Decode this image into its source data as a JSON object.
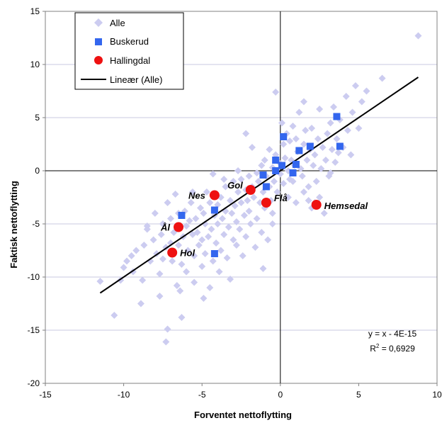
{
  "chart_data": {
    "type": "scatter",
    "title": "",
    "xlabel": "Forventet nettoflytting",
    "ylabel": "Faktisk nettoflytting",
    "xlim": [
      -15,
      10
    ],
    "ylim": [
      -20,
      15
    ],
    "xticks": [
      -15,
      -10,
      -5,
      0,
      5,
      10
    ],
    "yticks": [
      -20,
      -15,
      -10,
      -5,
      0,
      5,
      10,
      15
    ],
    "grid": "horizontal",
    "legend_position": "top-left",
    "colors": {
      "Alle": "#ccccf0",
      "Buskerud": "#3366ee",
      "Hallingdal": "#ee1111",
      "Lineær (Alle)": "#000000"
    },
    "series": [
      {
        "name": "Alle",
        "marker": "diamond",
        "points": [
          [
            -11.5,
            -10.4
          ],
          [
            -10.6,
            -13.6
          ],
          [
            -10,
            -9.1
          ],
          [
            -10.2,
            -10.3
          ],
          [
            -9.8,
            -8.5
          ],
          [
            -9.5,
            -8.0
          ],
          [
            -9.2,
            -7.5
          ],
          [
            -9.4,
            -9.5
          ],
          [
            -8.9,
            -12.5
          ],
          [
            -8.8,
            -10.3
          ],
          [
            -8.7,
            -7.0
          ],
          [
            -8.5,
            -5.5
          ],
          [
            -8.3,
            -8.5
          ],
          [
            -8.1,
            -6.5
          ],
          [
            -8.0,
            -4.0
          ],
          [
            -7.9,
            -7.8
          ],
          [
            -7.7,
            -9.7
          ],
          [
            -7.6,
            -6.0
          ],
          [
            -7.5,
            -5.0
          ],
          [
            -7.5,
            -8.3
          ],
          [
            -7.3,
            -16.1
          ],
          [
            -7.2,
            -14.9
          ],
          [
            -7.3,
            -7.2
          ],
          [
            -7.2,
            -3.0
          ],
          [
            -7.0,
            -4.5
          ],
          [
            -7.0,
            -6.8
          ],
          [
            -6.9,
            -8.5
          ],
          [
            -6.8,
            -5.8
          ],
          [
            -6.7,
            -2.2
          ],
          [
            -6.6,
            -10.8
          ],
          [
            -6.5,
            -4.0
          ],
          [
            -6.5,
            -7.0
          ],
          [
            -6.3,
            -13.8
          ],
          [
            -6.3,
            -8.8
          ],
          [
            -6.2,
            -6.2
          ],
          [
            -6.1,
            -3.8
          ],
          [
            -6.0,
            -5.2
          ],
          [
            -6.0,
            -9.5
          ],
          [
            -5.9,
            -7.5
          ],
          [
            -5.8,
            -4.7
          ],
          [
            -5.7,
            -3.0
          ],
          [
            -5.6,
            -6.0
          ],
          [
            -5.5,
            -8.0
          ],
          [
            -5.5,
            -10.5
          ],
          [
            -5.4,
            -4.5
          ],
          [
            -5.3,
            -5.8
          ],
          [
            -5.2,
            -7.0
          ],
          [
            -5.1,
            -3.5
          ],
          [
            -5.0,
            -6.5
          ],
          [
            -5.0,
            -9.0
          ],
          [
            -4.9,
            -4.0
          ],
          [
            -4.8,
            -5.0
          ],
          [
            -4.8,
            -7.8
          ],
          [
            -4.7,
            -2.0
          ],
          [
            -4.6,
            -6.2
          ],
          [
            -4.5,
            -3.0
          ],
          [
            -4.5,
            -11.0
          ],
          [
            -4.4,
            -5.5
          ],
          [
            -4.3,
            -0.3
          ],
          [
            -4.3,
            -8.5
          ],
          [
            -4.2,
            -4.2
          ],
          [
            -4.1,
            -6.8
          ],
          [
            -4.0,
            -3.2
          ],
          [
            -4.0,
            -5.0
          ],
          [
            -3.9,
            -9.5
          ],
          [
            -3.8,
            -2.5
          ],
          [
            -3.8,
            -7.5
          ],
          [
            -3.7,
            -4.5
          ],
          [
            -3.6,
            -6.0
          ],
          [
            -3.5,
            -1.5
          ],
          [
            -3.5,
            -3.8
          ],
          [
            -3.4,
            -8.2
          ],
          [
            -3.3,
            -5.3
          ],
          [
            -3.2,
            -2.8
          ],
          [
            -3.2,
            -10.2
          ],
          [
            -3.1,
            -4.0
          ],
          [
            -3.0,
            -6.5
          ],
          [
            -3.0,
            -1.0
          ],
          [
            -2.9,
            -3.3
          ],
          [
            -2.8,
            -7.0
          ],
          [
            -2.8,
            -4.8
          ],
          [
            -2.7,
            -2.0
          ],
          [
            -2.6,
            -5.5
          ],
          [
            -2.5,
            -0.8
          ],
          [
            -2.5,
            -3.0
          ],
          [
            -2.4,
            -8.0
          ],
          [
            -2.3,
            -4.2
          ],
          [
            -2.2,
            -1.8
          ],
          [
            -2.2,
            -6.2
          ],
          [
            -2.1,
            -2.8
          ],
          [
            -2.0,
            -0.5
          ],
          [
            -2.0,
            -3.8
          ],
          [
            -1.9,
            -5.0
          ],
          [
            -1.8,
            -1.5
          ],
          [
            -1.8,
            2.2
          ],
          [
            -1.7,
            -2.5
          ],
          [
            -1.6,
            -7.2
          ],
          [
            -1.5,
            -0.2
          ],
          [
            -1.5,
            -4.5
          ],
          [
            -1.4,
            -1.0
          ],
          [
            -1.3,
            -3.0
          ],
          [
            -1.2,
            0.5
          ],
          [
            -1.2,
            -5.8
          ],
          [
            -1.1,
            -2.0
          ],
          [
            -1.0,
            1.0
          ],
          [
            -1.0,
            -3.5
          ],
          [
            -0.9,
            -0.5
          ],
          [
            -0.8,
            -6.5
          ],
          [
            -0.7,
            -1.5
          ],
          [
            -0.7,
            2.0
          ],
          [
            -0.6,
            -2.8
          ],
          [
            -0.5,
            0.3
          ],
          [
            -0.5,
            -4.0
          ],
          [
            -0.4,
            -1.0
          ],
          [
            -0.3,
            1.5
          ],
          [
            -0.3,
            7.4
          ],
          [
            -0.2,
            -2.0
          ],
          [
            -0.1,
            0.8
          ],
          [
            0.0,
            -0.3
          ],
          [
            0.1,
            4.5
          ],
          [
            0.2,
            2.5
          ],
          [
            0.2,
            -1.2
          ],
          [
            0.3,
            1.2
          ],
          [
            0.4,
            3.5
          ],
          [
            0.5,
            0.0
          ],
          [
            0.5,
            -2.5
          ],
          [
            0.6,
            2.8
          ],
          [
            0.7,
            1.0
          ],
          [
            0.8,
            4.2
          ],
          [
            0.8,
            -1.0
          ],
          [
            0.9,
            0.5
          ],
          [
            1.0,
            3.0
          ],
          [
            1.0,
            -3.0
          ],
          [
            1.1,
            1.8
          ],
          [
            1.2,
            5.5
          ],
          [
            1.3,
            0.2
          ],
          [
            1.4,
            -0.5
          ],
          [
            1.5,
            2.5
          ],
          [
            1.5,
            -2.0
          ],
          [
            1.6,
            3.8
          ],
          [
            1.7,
            1.0
          ],
          [
            1.8,
            -1.5
          ],
          [
            1.9,
            2.0
          ],
          [
            2.0,
            4.0
          ],
          [
            2.0,
            -3.5
          ],
          [
            2.1,
            0.5
          ],
          [
            2.2,
            1.5
          ],
          [
            2.3,
            -1.0
          ],
          [
            2.4,
            3.0
          ],
          [
            2.5,
            5.8
          ],
          [
            2.5,
            -2.5
          ],
          [
            2.6,
            0.2
          ],
          [
            2.7,
            2.2
          ],
          [
            2.8,
            -4.0
          ],
          [
            2.9,
            1.0
          ],
          [
            3.0,
            3.5
          ],
          [
            3.1,
            -0.5
          ],
          [
            3.2,
            4.5
          ],
          [
            3.3,
            2.0
          ],
          [
            3.4,
            6.0
          ],
          [
            3.5,
            0.8
          ],
          [
            3.6,
            3.0
          ],
          [
            3.8,
            4.8
          ],
          [
            4.0,
            2.2
          ],
          [
            4.2,
            7.0
          ],
          [
            4.3,
            3.8
          ],
          [
            4.5,
            1.5
          ],
          [
            4.6,
            5.5
          ],
          [
            4.8,
            8.0
          ],
          [
            5.0,
            4.0
          ],
          [
            5.2,
            6.5
          ],
          [
            5.5,
            7.5
          ],
          [
            6.5,
            8.7
          ],
          [
            8.8,
            12.7
          ],
          [
            3.2,
            -0.2
          ],
          [
            2.2,
            -3.0
          ],
          [
            -0.5,
            -5.0
          ],
          [
            1.5,
            6.5
          ],
          [
            -2.2,
            3.5
          ],
          [
            0.6,
            -0.8
          ],
          [
            -6.4,
            -11.3
          ],
          [
            -7.7,
            -11.8
          ],
          [
            -3.6,
            -0.8
          ],
          [
            -2.7,
            0.0
          ],
          [
            -5.6,
            -2.0
          ],
          [
            -8.5,
            -5.2
          ],
          [
            -4.9,
            -12.0
          ],
          [
            -1.1,
            -9.2
          ],
          [
            1.8,
            -2.8
          ],
          [
            3.7,
            1.7
          ]
        ]
      },
      {
        "name": "Buskerud",
        "marker": "square",
        "points": [
          [
            -6.3,
            -4.2
          ],
          [
            -4.2,
            -3.7
          ],
          [
            -4.2,
            -7.8
          ],
          [
            -1.1,
            -0.4
          ],
          [
            -0.9,
            -1.5
          ],
          [
            -0.3,
            1.0
          ],
          [
            -0.3,
            0.0
          ],
          [
            0.1,
            0.5
          ],
          [
            0.2,
            3.2
          ],
          [
            0.8,
            -0.2
          ],
          [
            1.0,
            0.6
          ],
          [
            1.2,
            1.9
          ],
          [
            1.9,
            2.3
          ],
          [
            3.6,
            5.1
          ],
          [
            3.8,
            2.3
          ]
        ]
      },
      {
        "name": "Hallingdal",
        "marker": "circle",
        "points": [
          {
            "x": -4.2,
            "y": -2.3,
            "label": "Nes"
          },
          {
            "x": -1.9,
            "y": -1.8,
            "label": "Gol"
          },
          {
            "x": -0.9,
            "y": -3.0,
            "label": "Flå"
          },
          {
            "x": 2.3,
            "y": -3.2,
            "label": "Hemsedal"
          },
          {
            "x": -6.5,
            "y": -5.3,
            "label": "Ål"
          },
          {
            "x": -6.9,
            "y": -7.7,
            "label": "Hol"
          }
        ]
      }
    ],
    "trendline": {
      "name": "Lineær (Alle)",
      "slope": 1,
      "intercept": 0,
      "x_range": [
        -11.5,
        8.8
      ],
      "equation": "y = x - 4E-15",
      "r2_label": "R",
      "r2_sup": "2",
      "r2_value": " = 0,6929"
    }
  }
}
